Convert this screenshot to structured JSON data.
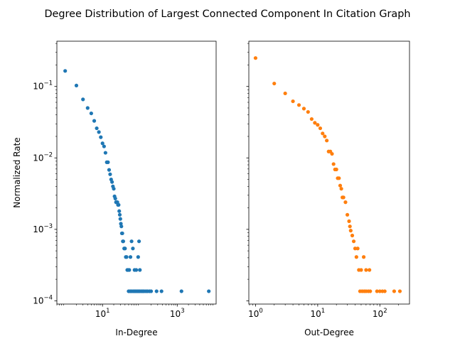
{
  "figure": {
    "title": "Degree Distribution of Largest Connected Component In Citation Graph"
  },
  "chart_data": [
    {
      "type": "scatter",
      "xlabel": "In-Degree",
      "ylabel": "Normalized Rate",
      "xscale": "log",
      "yscale": "log",
      "x_ticks": [
        {
          "value": 10,
          "label": "10^1"
        },
        {
          "value": 1000,
          "label": "10^3"
        }
      ],
      "y_ticks": [
        {
          "value": 0.0001,
          "label": "10^−4"
        },
        {
          "value": 0.001,
          "label": "10^−3"
        },
        {
          "value": 0.01,
          "label": "10^−2"
        },
        {
          "value": 0.1,
          "label": "10^−1"
        }
      ],
      "xlim": [
        0.6,
        11000
      ],
      "ylim": [
        9e-05,
        0.43
      ],
      "grid": false,
      "color": "#1f77b4",
      "points": [
        [
          1,
          0.165
        ],
        [
          2,
          0.103
        ],
        [
          3,
          0.066
        ],
        [
          4,
          0.05
        ],
        [
          5,
          0.042
        ],
        [
          6,
          0.033
        ],
        [
          7,
          0.026
        ],
        [
          8,
          0.023
        ],
        [
          9,
          0.0195
        ],
        [
          10,
          0.016
        ],
        [
          11,
          0.0145
        ],
        [
          12,
          0.0118
        ],
        [
          13,
          0.0087
        ],
        [
          14,
          0.0087
        ],
        [
          15,
          0.0068
        ],
        [
          16,
          0.0059
        ],
        [
          17,
          0.005
        ],
        [
          18,
          0.0046
        ],
        [
          19,
          0.004
        ],
        [
          20,
          0.0037
        ],
        [
          21,
          0.0029
        ],
        [
          22,
          0.0027
        ],
        [
          23,
          0.0024
        ],
        [
          24,
          0.0024
        ],
        [
          25,
          0.0024
        ],
        [
          26,
          0.0022
        ],
        [
          27,
          0.0022
        ],
        [
          28,
          0.0018
        ],
        [
          29,
          0.0016
        ],
        [
          30,
          0.0014
        ],
        [
          31,
          0.0012
        ],
        [
          32,
          0.0011
        ],
        [
          33,
          0.00088
        ],
        [
          34,
          0.00088
        ],
        [
          35,
          0.00068
        ],
        [
          36,
          0.00068
        ],
        [
          38,
          0.00054
        ],
        [
          40,
          0.00054
        ],
        [
          42,
          0.00041
        ],
        [
          44,
          0.00041
        ],
        [
          46,
          0.00027
        ],
        [
          48,
          0.00027
        ],
        [
          52,
          0.00027
        ],
        [
          56,
          0.00041
        ],
        [
          60,
          0.00068
        ],
        [
          65,
          0.00054
        ],
        [
          72,
          0.00027
        ],
        [
          80,
          0.00027
        ],
        [
          90,
          0.00041
        ],
        [
          95,
          0.00068
        ],
        [
          100,
          0.00027
        ],
        [
          50,
          0.000136
        ],
        [
          55,
          0.000136
        ],
        [
          60,
          0.000136
        ],
        [
          66,
          0.000136
        ],
        [
          72,
          0.000136
        ],
        [
          78,
          0.000136
        ],
        [
          85,
          0.000136
        ],
        [
          92,
          0.000136
        ],
        [
          100,
          0.000136
        ],
        [
          110,
          0.000136
        ],
        [
          120,
          0.000136
        ],
        [
          130,
          0.000136
        ],
        [
          145,
          0.000136
        ],
        [
          160,
          0.000136
        ],
        [
          180,
          0.000136
        ],
        [
          200,
          0.000136
        ],
        [
          280,
          0.000136
        ],
        [
          380,
          0.000136
        ],
        [
          1300,
          0.000136
        ],
        [
          7000,
          0.000136
        ]
      ]
    },
    {
      "type": "scatter",
      "xlabel": "Out-Degree",
      "ylabel": "",
      "xscale": "log",
      "yscale": "log",
      "x_ticks": [
        {
          "value": 1,
          "label": "10^0"
        },
        {
          "value": 10,
          "label": "10^1"
        },
        {
          "value": 100,
          "label": "10^2"
        }
      ],
      "y_ticks": [
        {
          "value": 0.0001,
          "label": ""
        },
        {
          "value": 0.001,
          "label": ""
        },
        {
          "value": 0.01,
          "label": ""
        },
        {
          "value": 0.1,
          "label": ""
        }
      ],
      "xlim": [
        0.78,
        300
      ],
      "ylim": [
        9e-05,
        0.43
      ],
      "grid": false,
      "color": "#ff7f0e",
      "points": [
        [
          1,
          0.25
        ],
        [
          2,
          0.11
        ],
        [
          3,
          0.08
        ],
        [
          4,
          0.062
        ],
        [
          5,
          0.055
        ],
        [
          6,
          0.049
        ],
        [
          7,
          0.044
        ],
        [
          8,
          0.035
        ],
        [
          9,
          0.031
        ],
        [
          10,
          0.029
        ],
        [
          11,
          0.026
        ],
        [
          12,
          0.022
        ],
        [
          13,
          0.02
        ],
        [
          14,
          0.0175
        ],
        [
          15,
          0.0123
        ],
        [
          16,
          0.0123
        ],
        [
          17,
          0.0114
        ],
        [
          18,
          0.0082
        ],
        [
          19,
          0.0069
        ],
        [
          20,
          0.0069
        ],
        [
          21,
          0.0052
        ],
        [
          22,
          0.0052
        ],
        [
          23,
          0.0041
        ],
        [
          24,
          0.0037
        ],
        [
          25,
          0.0028
        ],
        [
          26,
          0.0028
        ],
        [
          28,
          0.0024
        ],
        [
          30,
          0.0016
        ],
        [
          32,
          0.0013
        ],
        [
          33,
          0.0011
        ],
        [
          34,
          0.00096
        ],
        [
          36,
          0.00082
        ],
        [
          38,
          0.00068
        ],
        [
          40,
          0.00054
        ],
        [
          42,
          0.00041
        ],
        [
          44,
          0.00054
        ],
        [
          46,
          0.00027
        ],
        [
          50,
          0.00027
        ],
        [
          55,
          0.00041
        ],
        [
          60,
          0.00027
        ],
        [
          68,
          0.00027
        ],
        [
          48,
          0.000136
        ],
        [
          52,
          0.000136
        ],
        [
          56,
          0.000136
        ],
        [
          60,
          0.000136
        ],
        [
          65,
          0.000136
        ],
        [
          70,
          0.000136
        ],
        [
          90,
          0.000136
        ],
        [
          100,
          0.000136
        ],
        [
          110,
          0.000136
        ],
        [
          120,
          0.000136
        ],
        [
          170,
          0.000136
        ],
        [
          210,
          0.000136
        ]
      ]
    }
  ]
}
